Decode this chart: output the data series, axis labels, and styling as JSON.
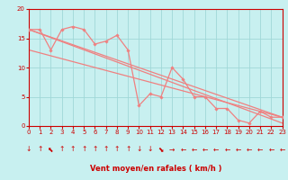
{
  "background_color": "#c8f0f0",
  "grid_color": "#a0d8d8",
  "line_color": "#f08080",
  "marker_color": "#f08080",
  "axis_color": "#cc0000",
  "text_color": "#cc0000",
  "xlabel": "Vent moyen/en rafales ( km/h )",
  "ylim": [
    0,
    20
  ],
  "xlim": [
    0,
    23
  ],
  "yticks": [
    0,
    5,
    10,
    15,
    20
  ],
  "xticks": [
    0,
    1,
    2,
    3,
    4,
    5,
    6,
    7,
    8,
    9,
    10,
    11,
    12,
    13,
    14,
    15,
    16,
    17,
    18,
    19,
    20,
    21,
    22,
    23
  ],
  "series1_x": [
    0,
    1,
    2,
    3,
    4,
    5,
    6,
    7,
    8,
    9,
    10,
    11,
    12,
    13,
    14,
    15,
    16,
    17,
    18,
    19,
    20,
    21,
    22,
    23
  ],
  "series1_y": [
    16.5,
    16.5,
    13.0,
    16.5,
    17.0,
    16.5,
    14.0,
    14.5,
    15.5,
    13.0,
    3.5,
    5.5,
    5.0,
    10.0,
    8.0,
    5.0,
    5.0,
    3.0,
    3.0,
    1.0,
    0.5,
    2.5,
    1.5,
    1.5
  ],
  "series2_x": [
    0,
    23
  ],
  "series2_y": [
    16.5,
    1.5
  ],
  "series3_x": [
    0,
    23
  ],
  "series3_y": [
    13.0,
    1.5
  ],
  "series4_x": [
    0,
    23
  ],
  "series4_y": [
    16.5,
    0.5
  ],
  "wind_chars": [
    "↓",
    "↑",
    "⬉",
    "↑",
    "↑",
    "↑",
    "↑",
    "↑",
    "↑",
    "↑",
    "↓",
    "↓",
    "⬊",
    "→",
    "←",
    "←",
    "←",
    "←",
    "←",
    "←",
    "←",
    "←",
    "←",
    "←"
  ]
}
